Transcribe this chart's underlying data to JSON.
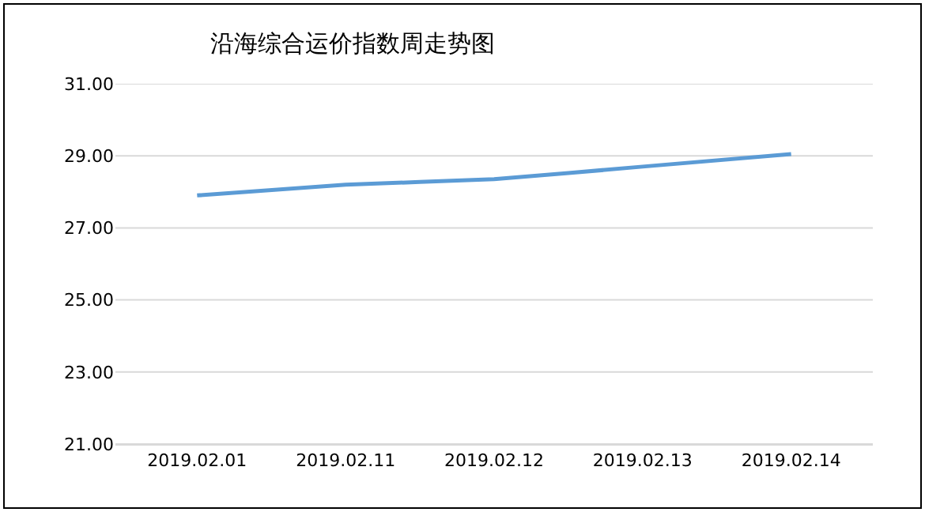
{
  "chart_data": {
    "type": "line",
    "title": "沿海综合运价指数周走势图",
    "categories": [
      "2019.02.01",
      "2019.02.11",
      "2019.02.12",
      "2019.02.13",
      "2019.02.14"
    ],
    "series": [
      {
        "color": "#5b9bd5",
        "values": [
          27.9,
          28.2,
          28.35,
          28.7,
          29.05
        ]
      }
    ],
    "ylim": [
      21,
      31
    ],
    "yticks": [
      {
        "value": 21,
        "label": "21.00"
      },
      {
        "value": 23,
        "label": "23.00"
      },
      {
        "value": 25,
        "label": "25.00"
      },
      {
        "value": 27,
        "label": "27.00"
      },
      {
        "value": 29,
        "label": "29.00"
      },
      {
        "value": 31,
        "label": "31.00"
      }
    ],
    "grid": "y",
    "marker": "none",
    "line_style": "solid"
  }
}
